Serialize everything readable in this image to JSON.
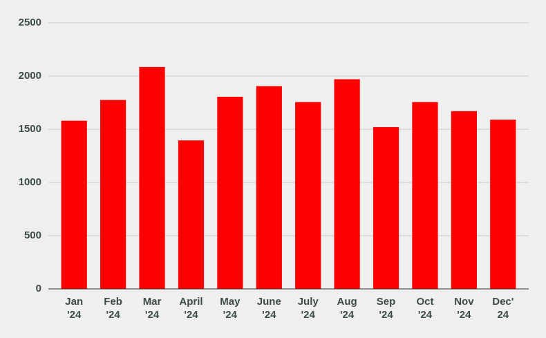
{
  "chart_data": {
    "type": "bar",
    "categories": [
      [
        "Jan",
        "'24"
      ],
      [
        "Feb",
        "'24"
      ],
      [
        "Mar",
        "'24"
      ],
      [
        "April",
        "'24"
      ],
      [
        "May",
        "'24"
      ],
      [
        "June",
        "'24"
      ],
      [
        "July",
        "'24"
      ],
      [
        "Aug",
        "'24"
      ],
      [
        "Sep",
        "'24"
      ],
      [
        "Oct",
        "'24"
      ],
      [
        "Nov",
        "'24"
      ],
      [
        "Dec'",
        "24"
      ]
    ],
    "values": [
      1580,
      1775,
      2085,
      1395,
      1805,
      1905,
      1755,
      1970,
      1520,
      1755,
      1670,
      1590
    ],
    "color": "#ff0000",
    "ylim": [
      0,
      2500
    ],
    "yticks": [
      0,
      500,
      1000,
      1500,
      2000,
      2500
    ],
    "grid": true
  }
}
